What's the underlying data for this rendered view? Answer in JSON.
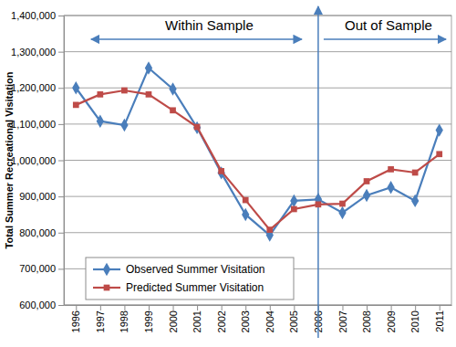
{
  "chart_data": {
    "type": "line",
    "y_label": "Total Summer Recreational Visitation",
    "annotations": [
      "Within Sample",
      "Out of Sample"
    ],
    "categories": [
      "1996",
      "1997",
      "1998",
      "1999",
      "2000",
      "2001",
      "2002",
      "2003",
      "2004",
      "2005",
      "2006",
      "2007",
      "2008",
      "2009",
      "2010",
      "2011"
    ],
    "series": [
      {
        "name": "Observed Summer Visitation",
        "color": "#4a7ebb",
        "marker": "diamond",
        "line_style": "solid",
        "values": [
          1200000,
          1108000,
          1097000,
          1255000,
          1197000,
          1090000,
          965000,
          850000,
          793000,
          888000,
          892000,
          855000,
          903000,
          925000,
          888000,
          1083000
        ]
      },
      {
        "name": "Predicted Summer Visitation",
        "color": "#be4b48",
        "marker": "square",
        "line_style": "solid",
        "values": [
          1153000,
          1182000,
          1193000,
          1182000,
          1138000,
          1092000,
          970000,
          890000,
          808000,
          865000,
          878000,
          880000,
          942000,
          975000,
          966000,
          1017000
        ]
      }
    ],
    "ylim": [
      600000,
      1400000
    ],
    "yticks": [
      {
        "value": 600000,
        "label": "600,000"
      },
      {
        "value": 700000,
        "label": "700,000"
      },
      {
        "value": 800000,
        "label": "800,000"
      },
      {
        "value": 900000,
        "label": "900,000"
      },
      {
        "value": 1000000,
        "label": "1,000,000"
      },
      {
        "value": 1100000,
        "label": "1,100,000"
      },
      {
        "value": 1200000,
        "label": "1,200,000"
      },
      {
        "value": 1300000,
        "label": "1,300,000"
      },
      {
        "value": 1400000,
        "label": "1,400,000"
      }
    ],
    "grid": true,
    "legend": "lower left"
  }
}
